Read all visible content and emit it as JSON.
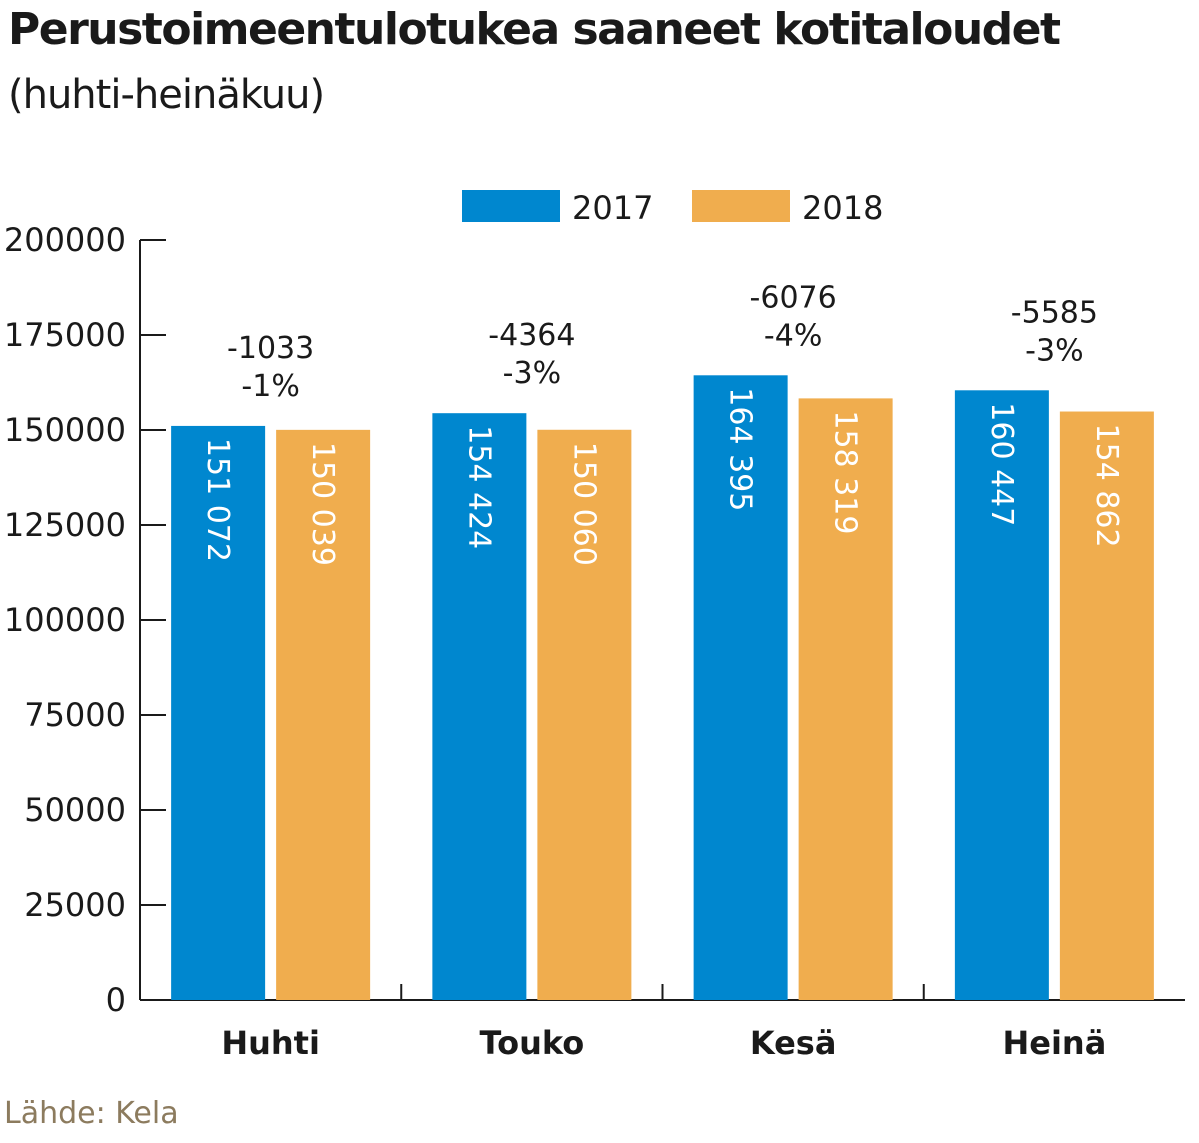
{
  "title": "Perustoimeentulotukea saaneet kotitaloudet",
  "subtitle": "(huhti-heinäkuu)",
  "source": "Lähde: Kela",
  "colors": {
    "s2017": "#0087cf",
    "s2018": "#f0ad4e",
    "axis": "#1a1a1a"
  },
  "chart_data": {
    "type": "bar",
    "title": "Perustoimeentulotukea saaneet kotitaloudet",
    "subtitle": "(huhti-heinäkuu)",
    "xlabel": "",
    "ylabel": "",
    "ylim": [
      0,
      200000
    ],
    "yticks": [
      0,
      25000,
      50000,
      75000,
      100000,
      125000,
      150000,
      175000,
      200000
    ],
    "ytick_labels": [
      "0",
      "25000",
      "50000",
      "75000",
      "100000",
      "125000",
      "150000",
      "175000",
      "200000"
    ],
    "categories": [
      "Huhti",
      "Touko",
      "Kesä",
      "Heinä"
    ],
    "series": [
      {
        "name": "2017",
        "values": [
          151072,
          154424,
          164395,
          160447
        ],
        "labels": [
          "151 072",
          "154 424",
          "164 395",
          "160 447"
        ]
      },
      {
        "name": "2018",
        "values": [
          150039,
          150060,
          158319,
          154862
        ],
        "labels": [
          "150 039",
          "150 060",
          "158 319",
          "154 862"
        ]
      }
    ],
    "annotations": [
      {
        "change": "-1033",
        "percent": "-1%"
      },
      {
        "change": "-4364",
        "percent": "-3%"
      },
      {
        "change": "-6076",
        "percent": "-4%"
      },
      {
        "change": "-5585",
        "percent": "-3%"
      }
    ],
    "legend_position": "top-center",
    "grid": false
  }
}
